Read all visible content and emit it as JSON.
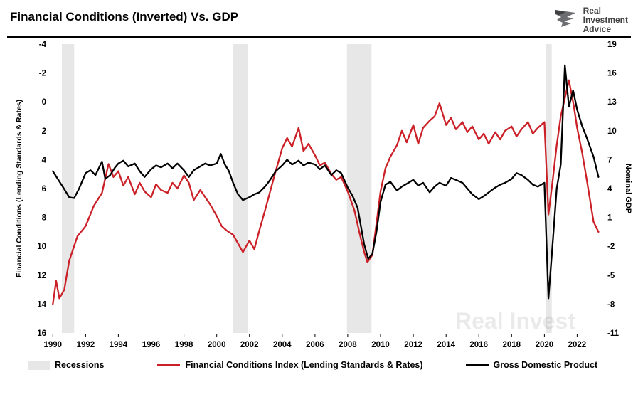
{
  "header": {
    "title": "Financial Conditions (Inverted) Vs. GDP",
    "logo": {
      "line1": "Real",
      "line2": "Investment",
      "line3": "Advice"
    }
  },
  "legend": {
    "recessions": "Recessions",
    "fci": "Financial Conditions Index (Lending Standards & Rates)",
    "gdp": "Gross Domestic Product"
  },
  "watermark": "Real Invest",
  "chart_data": {
    "type": "line",
    "title": "Financial Conditions (Inverted) Vs. GDP",
    "colors": {
      "recession": "#e7e7e7",
      "fci": "#cb2027",
      "gdp": "#000000"
    },
    "x_axis": {
      "range": [
        1989.9,
        2023.5
      ],
      "ticks": [
        1990,
        1992,
        1994,
        1996,
        1998,
        2000,
        2002,
        2004,
        2006,
        2008,
        2010,
        2012,
        2014,
        2016,
        2018,
        2020,
        2022
      ]
    },
    "left_axis": {
      "label": "Financial Conditions (Lending Standards & Rates)",
      "inverted": true,
      "range": [
        -4,
        16
      ],
      "ticks": [
        -4,
        -2,
        0,
        2,
        4,
        6,
        8,
        10,
        12,
        14,
        16
      ]
    },
    "right_axis": {
      "label": "Nominal GDP",
      "range": [
        -11,
        19
      ],
      "ticks": [
        19,
        16,
        13,
        10,
        7,
        4,
        1,
        -2,
        -5,
        -8,
        -11
      ]
    },
    "recessions": [
      [
        1990.55,
        1991.3
      ],
      [
        2001.0,
        2001.92
      ],
      [
        2007.95,
        2009.45
      ],
      [
        2020.08,
        2020.45
      ]
    ],
    "legend_position": "bottom",
    "grid": false,
    "series": [
      {
        "name": "Financial Conditions Index (Lending Standards & Rates)",
        "axis": "left",
        "color": "#cb2027",
        "points": [
          [
            1990.0,
            14.0
          ],
          [
            1990.2,
            12.4
          ],
          [
            1990.4,
            13.6
          ],
          [
            1990.7,
            13.0
          ],
          [
            1991.0,
            11.0
          ],
          [
            1991.5,
            9.3
          ],
          [
            1992.0,
            8.6
          ],
          [
            1992.5,
            7.2
          ],
          [
            1993.0,
            6.3
          ],
          [
            1993.4,
            4.3
          ],
          [
            1993.7,
            5.2
          ],
          [
            1994.0,
            4.8
          ],
          [
            1994.3,
            5.8
          ],
          [
            1994.6,
            5.2
          ],
          [
            1995.0,
            6.4
          ],
          [
            1995.3,
            5.6
          ],
          [
            1995.6,
            6.2
          ],
          [
            1996.0,
            6.6
          ],
          [
            1996.3,
            5.7
          ],
          [
            1996.6,
            6.1
          ],
          [
            1997.0,
            6.3
          ],
          [
            1997.3,
            5.6
          ],
          [
            1997.6,
            6.0
          ],
          [
            1998.0,
            5.1
          ],
          [
            1998.3,
            5.6
          ],
          [
            1998.6,
            6.8
          ],
          [
            1999.0,
            6.1
          ],
          [
            1999.3,
            6.6
          ],
          [
            1999.6,
            7.1
          ],
          [
            2000.0,
            7.9
          ],
          [
            2000.3,
            8.6
          ],
          [
            2000.6,
            8.9
          ],
          [
            2001.0,
            9.2
          ],
          [
            2001.3,
            9.8
          ],
          [
            2001.6,
            10.4
          ],
          [
            2002.0,
            9.6
          ],
          [
            2002.3,
            10.2
          ],
          [
            2002.6,
            8.9
          ],
          [
            2003.0,
            7.3
          ],
          [
            2003.5,
            5.2
          ],
          [
            2004.0,
            3.2
          ],
          [
            2004.3,
            2.5
          ],
          [
            2004.6,
            3.1
          ],
          [
            2005.0,
            1.8
          ],
          [
            2005.3,
            3.4
          ],
          [
            2005.6,
            2.9
          ],
          [
            2006.0,
            3.7
          ],
          [
            2006.3,
            4.4
          ],
          [
            2006.6,
            4.2
          ],
          [
            2007.0,
            5.0
          ],
          [
            2007.3,
            5.4
          ],
          [
            2007.6,
            5.2
          ],
          [
            2008.0,
            6.2
          ],
          [
            2008.4,
            7.5
          ],
          [
            2008.7,
            9.0
          ],
          [
            2009.0,
            10.4
          ],
          [
            2009.2,
            11.1
          ],
          [
            2009.5,
            10.6
          ],
          [
            2009.8,
            8.0
          ],
          [
            2010.0,
            6.2
          ],
          [
            2010.3,
            4.6
          ],
          [
            2010.6,
            3.8
          ],
          [
            2011.0,
            3.0
          ],
          [
            2011.3,
            2.0
          ],
          [
            2011.6,
            2.8
          ],
          [
            2012.0,
            1.6
          ],
          [
            2012.3,
            2.9
          ],
          [
            2012.6,
            1.8
          ],
          [
            2013.0,
            1.3
          ],
          [
            2013.3,
            1.0
          ],
          [
            2013.6,
            0.1
          ],
          [
            2014.0,
            1.6
          ],
          [
            2014.3,
            1.1
          ],
          [
            2014.6,
            1.9
          ],
          [
            2015.0,
            1.4
          ],
          [
            2015.3,
            2.1
          ],
          [
            2015.6,
            1.7
          ],
          [
            2016.0,
            2.6
          ],
          [
            2016.3,
            2.2
          ],
          [
            2016.6,
            2.9
          ],
          [
            2017.0,
            2.1
          ],
          [
            2017.3,
            2.6
          ],
          [
            2017.6,
            2.0
          ],
          [
            2018.0,
            1.7
          ],
          [
            2018.3,
            2.4
          ],
          [
            2018.6,
            1.9
          ],
          [
            2019.0,
            1.4
          ],
          [
            2019.3,
            2.2
          ],
          [
            2019.6,
            1.8
          ],
          [
            2020.0,
            1.4
          ],
          [
            2020.25,
            7.8
          ],
          [
            2020.5,
            5.5
          ],
          [
            2020.75,
            3.0
          ],
          [
            2021.0,
            1.0
          ],
          [
            2021.3,
            -0.5
          ],
          [
            2021.5,
            -1.5
          ],
          [
            2021.8,
            0.3
          ],
          [
            2022.0,
            1.8
          ],
          [
            2022.3,
            3.5
          ],
          [
            2022.6,
            5.5
          ],
          [
            2023.0,
            8.3
          ],
          [
            2023.3,
            9.0
          ]
        ]
      },
      {
        "name": "Gross Domestic Product",
        "axis": "right",
        "color": "#000000",
        "points": [
          [
            1990.0,
            5.8
          ],
          [
            1990.3,
            5.0
          ],
          [
            1990.6,
            4.2
          ],
          [
            1991.0,
            3.1
          ],
          [
            1991.3,
            3.0
          ],
          [
            1991.6,
            4.0
          ],
          [
            1992.0,
            5.6
          ],
          [
            1992.3,
            5.9
          ],
          [
            1992.6,
            5.4
          ],
          [
            1993.0,
            6.8
          ],
          [
            1993.2,
            5.0
          ],
          [
            1993.5,
            5.4
          ],
          [
            1993.8,
            6.2
          ],
          [
            1994.0,
            6.6
          ],
          [
            1994.3,
            6.9
          ],
          [
            1994.6,
            6.3
          ],
          [
            1995.0,
            6.6
          ],
          [
            1995.3,
            5.8
          ],
          [
            1995.6,
            5.2
          ],
          [
            1996.0,
            6.0
          ],
          [
            1996.3,
            6.4
          ],
          [
            1996.6,
            6.2
          ],
          [
            1997.0,
            6.6
          ],
          [
            1997.3,
            6.1
          ],
          [
            1997.6,
            6.6
          ],
          [
            1998.0,
            5.9
          ],
          [
            1998.3,
            5.2
          ],
          [
            1998.6,
            5.9
          ],
          [
            1999.0,
            6.3
          ],
          [
            1999.3,
            6.6
          ],
          [
            1999.6,
            6.4
          ],
          [
            2000.0,
            6.6
          ],
          [
            2000.25,
            7.6
          ],
          [
            2000.5,
            6.5
          ],
          [
            2000.75,
            5.8
          ],
          [
            2001.0,
            4.6
          ],
          [
            2001.3,
            3.4
          ],
          [
            2001.6,
            2.8
          ],
          [
            2002.0,
            3.1
          ],
          [
            2002.3,
            3.4
          ],
          [
            2002.6,
            3.6
          ],
          [
            2003.0,
            4.3
          ],
          [
            2003.3,
            5.0
          ],
          [
            2003.6,
            5.8
          ],
          [
            2004.0,
            6.4
          ],
          [
            2004.3,
            7.0
          ],
          [
            2004.6,
            6.5
          ],
          [
            2005.0,
            6.9
          ],
          [
            2005.3,
            6.4
          ],
          [
            2005.6,
            6.7
          ],
          [
            2006.0,
            6.5
          ],
          [
            2006.3,
            6.0
          ],
          [
            2006.6,
            6.4
          ],
          [
            2007.0,
            5.4
          ],
          [
            2007.3,
            5.9
          ],
          [
            2007.6,
            5.6
          ],
          [
            2008.0,
            4.1
          ],
          [
            2008.3,
            3.2
          ],
          [
            2008.6,
            2.0
          ],
          [
            2009.0,
            -1.8
          ],
          [
            2009.25,
            -3.3
          ],
          [
            2009.5,
            -2.8
          ],
          [
            2009.75,
            -0.5
          ],
          [
            2010.0,
            2.6
          ],
          [
            2010.3,
            4.4
          ],
          [
            2010.6,
            4.7
          ],
          [
            2011.0,
            3.8
          ],
          [
            2011.3,
            4.2
          ],
          [
            2011.6,
            4.5
          ],
          [
            2012.0,
            4.9
          ],
          [
            2012.3,
            4.3
          ],
          [
            2012.6,
            4.6
          ],
          [
            2013.0,
            3.6
          ],
          [
            2013.3,
            4.2
          ],
          [
            2013.6,
            4.6
          ],
          [
            2014.0,
            4.3
          ],
          [
            2014.3,
            5.1
          ],
          [
            2014.6,
            4.9
          ],
          [
            2015.0,
            4.6
          ],
          [
            2015.3,
            4.0
          ],
          [
            2015.6,
            3.4
          ],
          [
            2016.0,
            2.9
          ],
          [
            2016.3,
            3.2
          ],
          [
            2016.6,
            3.6
          ],
          [
            2017.0,
            4.1
          ],
          [
            2017.3,
            4.4
          ],
          [
            2017.6,
            4.6
          ],
          [
            2018.0,
            5.0
          ],
          [
            2018.3,
            5.6
          ],
          [
            2018.6,
            5.4
          ],
          [
            2019.0,
            4.9
          ],
          [
            2019.3,
            4.4
          ],
          [
            2019.6,
            4.2
          ],
          [
            2020.0,
            4.6
          ],
          [
            2020.25,
            -7.4
          ],
          [
            2020.5,
            -1.8
          ],
          [
            2020.75,
            4.0
          ],
          [
            2021.0,
            6.5
          ],
          [
            2021.25,
            16.8
          ],
          [
            2021.5,
            12.5
          ],
          [
            2021.75,
            14.2
          ],
          [
            2022.0,
            12.2
          ],
          [
            2022.3,
            10.5
          ],
          [
            2022.6,
            9.2
          ],
          [
            2023.0,
            7.3
          ],
          [
            2023.3,
            5.2
          ]
        ]
      }
    ]
  }
}
